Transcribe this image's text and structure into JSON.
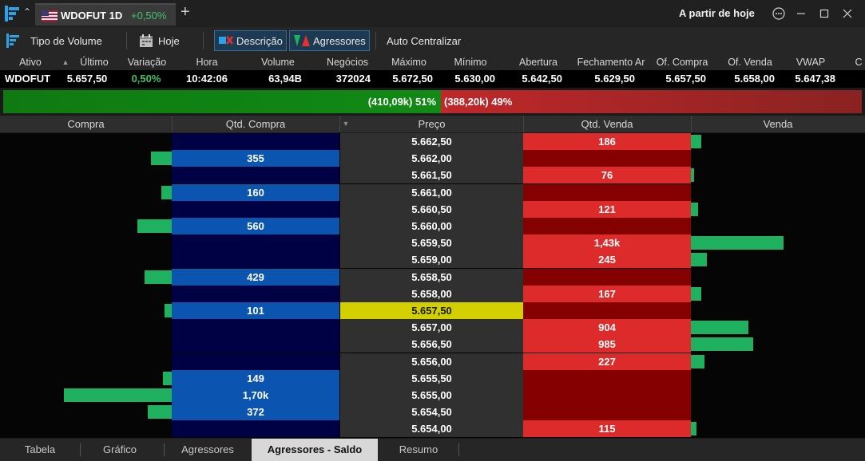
{
  "titlebar": {
    "tab_symbol": "WDOFUT 1D",
    "tab_change": "+0,50%",
    "date_range": "A partir de hoje"
  },
  "toolbar": {
    "volume_type": "Tipo de Volume",
    "today": "Hoje",
    "description": "Descrição",
    "aggressors": "Agressores",
    "auto_center": "Auto Centralizar"
  },
  "quote": {
    "headers": [
      "Ativo",
      "Último",
      "Variação",
      "Hora",
      "Volume",
      "Negócios",
      "Máximo",
      "Mínimo",
      "Abertura",
      "Fechamento Ar",
      "Of. Compra",
      "Of. Venda",
      "VWAP",
      "C"
    ],
    "values": [
      "WDOFUT",
      "5.657,50",
      "0,50%",
      "10:42:06",
      "63,94B",
      "372024",
      "5.672,50",
      "5.630,00",
      "5.642,50",
      "5.629,50",
      "5.657,50",
      "5.658,00",
      "5.647,38"
    ]
  },
  "aggressor_bar": {
    "buy_label": "(410,09k) 51%",
    "sell_label": "(388,20k) 49%",
    "buy_fraction": 0.51
  },
  "columns": {
    "buy": "Compra",
    "buy_qty": "Qtd. Compra",
    "price": "Preço",
    "sell_qty": "Qtd. Venda",
    "sell": "Venda"
  },
  "book": [
    {
      "price": "5.662,50",
      "buy_qty": "",
      "sell_qty": "186",
      "buy_level": 0,
      "sell_level": 0.06
    },
    {
      "price": "5.662,00",
      "buy_qty": "355",
      "sell_qty": "",
      "buy_level": 0.12,
      "sell_level": 0
    },
    {
      "price": "5.661,50",
      "buy_qty": "",
      "sell_qty": "76",
      "buy_level": 0,
      "sell_level": 0.02
    },
    {
      "price": "5.661,00",
      "buy_qty": "160",
      "sell_qty": "",
      "buy_level": 0.06,
      "sell_level": 0
    },
    {
      "price": "5.660,50",
      "buy_qty": "",
      "sell_qty": "121",
      "buy_level": 0,
      "sell_level": 0.04
    },
    {
      "price": "5.660,00",
      "buy_qty": "560",
      "sell_qty": "",
      "buy_level": 0.2,
      "sell_level": 0
    },
    {
      "price": "5.659,50",
      "buy_qty": "",
      "sell_qty": "1,43k",
      "buy_level": 0,
      "sell_level": 0.53
    },
    {
      "price": "5.659,00",
      "buy_qty": "",
      "sell_qty": "245",
      "buy_level": 0,
      "sell_level": 0.09
    },
    {
      "price": "5.658,50",
      "buy_qty": "429",
      "sell_qty": "",
      "buy_level": 0.16,
      "sell_level": 0
    },
    {
      "price": "5.658,00",
      "buy_qty": "",
      "sell_qty": "167",
      "buy_level": 0,
      "sell_level": 0.06
    },
    {
      "price": "5.657,50",
      "buy_qty": "101",
      "sell_qty": "",
      "buy_level": 0.04,
      "sell_level": 0,
      "current": true
    },
    {
      "price": "5.657,00",
      "buy_qty": "",
      "sell_qty": "904",
      "buy_level": 0,
      "sell_level": 0.33
    },
    {
      "price": "5.656,50",
      "buy_qty": "",
      "sell_qty": "985",
      "buy_level": 0,
      "sell_level": 0.36
    },
    {
      "price": "5.656,00",
      "buy_qty": "",
      "sell_qty": "227",
      "buy_level": 0,
      "sell_level": 0.08
    },
    {
      "price": "5.655,50",
      "buy_qty": "149",
      "sell_qty": "",
      "buy_level": 0.05,
      "sell_level": 0
    },
    {
      "price": "5.655,00",
      "buy_qty": "1,70k",
      "sell_qty": "",
      "buy_level": 0.63,
      "sell_level": 0
    },
    {
      "price": "5.654,50",
      "buy_qty": "372",
      "sell_qty": "",
      "buy_level": 0.14,
      "sell_level": 0
    },
    {
      "price": "5.654,00",
      "buy_qty": "",
      "sell_qty": "115",
      "buy_level": 0,
      "sell_level": 0.03
    }
  ],
  "bottom_tabs": [
    "Tabela",
    "Gráfico",
    "Agressores",
    "Agressores - Saldo",
    "Resumo"
  ],
  "active_tab": "Agressores - Saldo",
  "colors": {
    "buy_green": "#1fb060",
    "sell_red": "#dd2a2a",
    "positive_text": "#3fc46a",
    "current_price": "#d4d000"
  },
  "icons": [
    "app-logo-icon",
    "chevron-up-icon",
    "us-flag-icon",
    "plus-icon",
    "menu-dots-icon",
    "minimize-icon",
    "maximize-icon",
    "close-icon",
    "volume-type-icon",
    "calendar-icon",
    "description-icon",
    "aggressors-icon",
    "sort-desc-icon"
  ]
}
